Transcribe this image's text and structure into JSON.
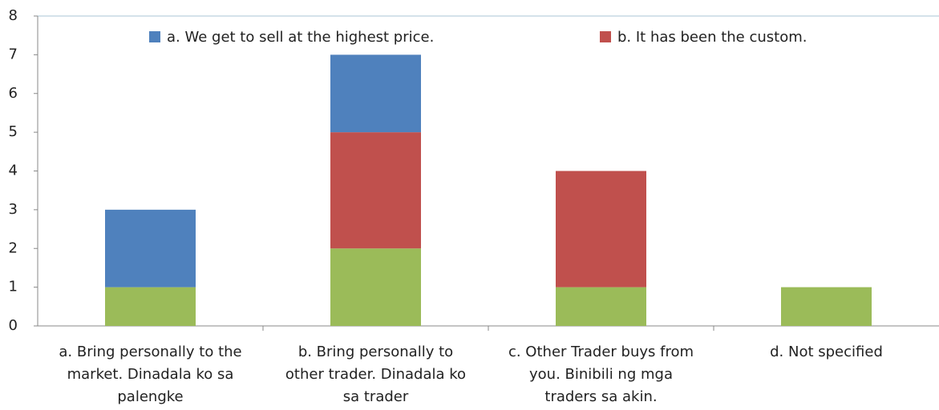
{
  "chart_data": {
    "type": "stacked_bar",
    "categories": [
      "a. Bring personally to the\nmarket. Dinadala ko sa\npalengke",
      "b. Bring personally to\nother trader. Dinadala ko\nsa trader",
      "c. Other Trader buys from\nyou. Binibili ng mga\ntraders sa akin.",
      "d. Not specified"
    ],
    "series": [
      {
        "color": "#9bbb59",
        "values": [
          1,
          2,
          1,
          1
        ]
      },
      {
        "name": "b. It has been the custom.",
        "color": "#c0504d",
        "values": [
          0,
          3,
          3,
          0
        ]
      },
      {
        "name": "a. We get to sell at the highest price.",
        "color": "#4f81bd",
        "values": [
          2,
          2,
          0,
          0
        ]
      }
    ],
    "ylim": [
      0,
      8
    ],
    "yticks": [
      0,
      1,
      2,
      3,
      4,
      5,
      6,
      7,
      8
    ],
    "legend": "top"
  }
}
